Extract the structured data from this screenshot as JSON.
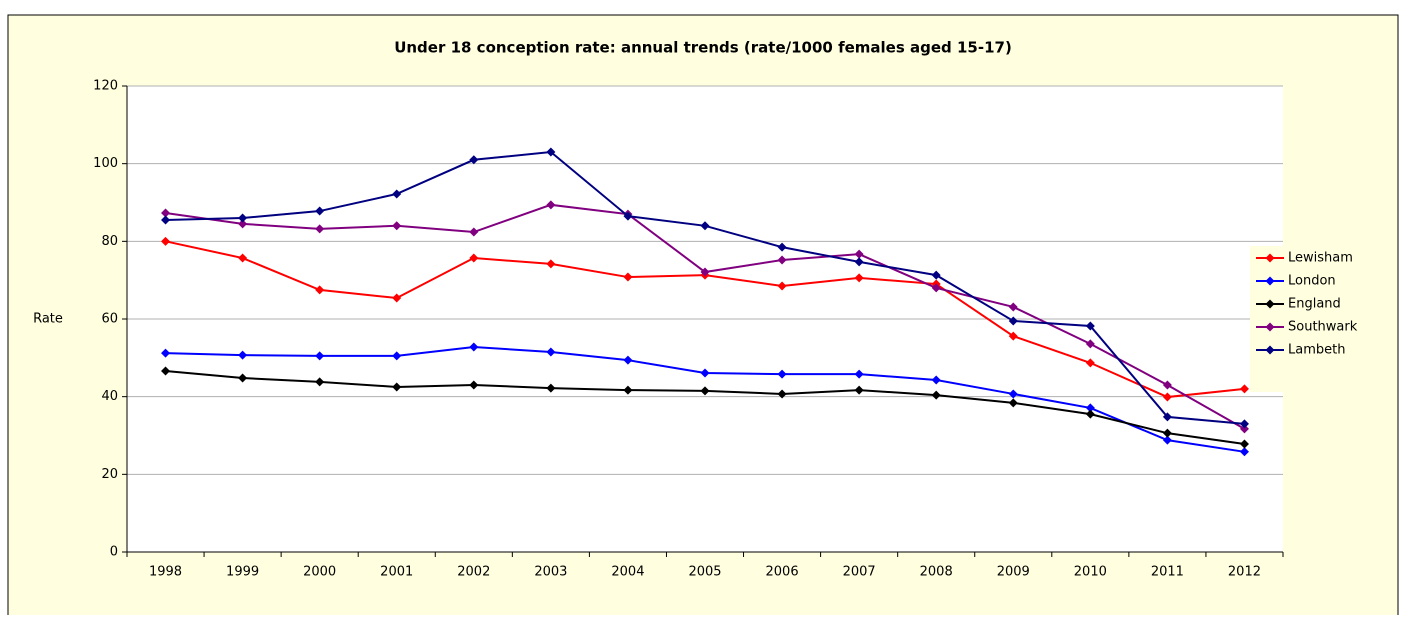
{
  "chart_data": {
    "type": "line",
    "title": "Under 18 conception rate: annual trends (rate/1000 females aged 15-17)",
    "y_label": "Rate",
    "categories": [
      "1998",
      "1999",
      "2000",
      "2001",
      "2002",
      "2003",
      "2004",
      "2005",
      "2006",
      "2007",
      "2008",
      "2009",
      "2010",
      "2011",
      "2012"
    ],
    "ylim": [
      0,
      120
    ],
    "yticks": [
      0,
      20,
      40,
      60,
      80,
      100,
      120
    ],
    "grid": true,
    "legend": "right",
    "series": [
      {
        "name": "Lewisham",
        "color": "#ff0000",
        "values": [
          80,
          75.7,
          67.5,
          65.4,
          75.7,
          74.2,
          70.8,
          71.3,
          68.5,
          70.6,
          69,
          55.6,
          48.7,
          39.9,
          42
        ]
      },
      {
        "name": "London",
        "color": "#0000ff",
        "values": [
          51.2,
          50.7,
          50.5,
          50.5,
          52.8,
          51.5,
          49.4,
          46.1,
          45.8,
          45.8,
          44.3,
          40.7,
          37.1,
          28.8,
          25.8
        ]
      },
      {
        "name": "England",
        "color": "#000000",
        "values": [
          46.6,
          44.8,
          43.8,
          42.5,
          43,
          42.2,
          41.7,
          41.5,
          40.7,
          41.7,
          40.4,
          38.4,
          35.5,
          30.6,
          27.8
        ]
      },
      {
        "name": "Southwark",
        "color": "#800080",
        "values": [
          87.3,
          84.5,
          83.2,
          84,
          82.4,
          89.4,
          87,
          72.1,
          75.2,
          76.7,
          68,
          63.1,
          53.6,
          43,
          31.7
        ]
      },
      {
        "name": "Lambeth",
        "color": "#000080",
        "values": [
          85.5,
          86,
          87.8,
          92.2,
          101,
          103,
          86.5,
          84,
          78.5,
          74.7,
          71.3,
          59.5,
          58.2,
          34.8,
          33
        ]
      }
    ]
  }
}
